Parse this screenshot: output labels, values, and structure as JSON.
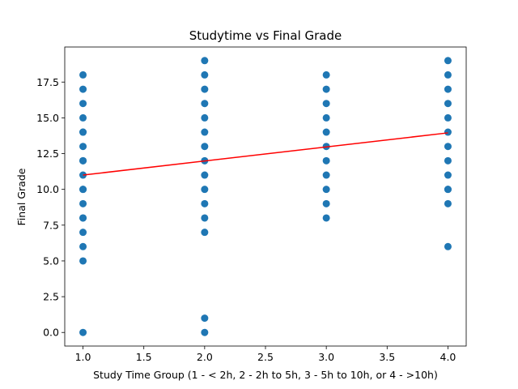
{
  "chart_data": {
    "type": "scatter",
    "title": "Studytime vs Final Grade",
    "xlabel": "Study Time Group (1 - < 2h, 2 - 2h to 5h, 3 - 5h to 10h, or 4 - >10h)",
    "ylabel": "Final Grade",
    "xlim": [
      0.85,
      4.15
    ],
    "ylim": [
      -0.95,
      19.95
    ],
    "xticks": [
      1.0,
      1.5,
      2.0,
      2.5,
      3.0,
      3.5,
      4.0
    ],
    "xtick_labels": [
      "1.0",
      "1.5",
      "2.0",
      "2.5",
      "3.0",
      "3.5",
      "4.0"
    ],
    "yticks": [
      0.0,
      2.5,
      5.0,
      7.5,
      10.0,
      12.5,
      15.0,
      17.5
    ],
    "ytick_labels": [
      "0.0",
      "2.5",
      "5.0",
      "7.5",
      "10.0",
      "12.5",
      "15.0",
      "17.5"
    ],
    "grid": false,
    "marker_color": "#1f77b4",
    "points": {
      "x": [
        1,
        1,
        1,
        1,
        1,
        1,
        1,
        1,
        1,
        1,
        1,
        1,
        1,
        1,
        1,
        1,
        1,
        1,
        1,
        2,
        2,
        2,
        2,
        2,
        2,
        2,
        2,
        2,
        2,
        2,
        2,
        2,
        2,
        2,
        3,
        3,
        3,
        3,
        3,
        3,
        3,
        3,
        3,
        3,
        3,
        4,
        4,
        4,
        4,
        4,
        4,
        4,
        4,
        4,
        4,
        4,
        4,
        4
      ],
      "y": [
        0,
        5,
        6,
        7,
        8,
        9,
        10,
        11,
        12,
        13,
        14,
        15,
        16,
        17,
        18,
        8,
        10,
        12,
        14,
        0,
        1,
        7,
        8,
        9,
        10,
        11,
        12,
        13,
        14,
        15,
        16,
        17,
        18,
        19,
        8,
        9,
        10,
        11,
        12,
        13,
        14,
        15,
        16,
        17,
        18,
        6,
        9,
        10,
        11,
        12,
        13,
        14,
        15,
        16,
        17,
        18,
        19,
        10
      ]
    },
    "trend_line": {
      "color": "#ff0000",
      "x": [
        1,
        4
      ],
      "y": [
        11.0,
        13.95
      ]
    }
  }
}
